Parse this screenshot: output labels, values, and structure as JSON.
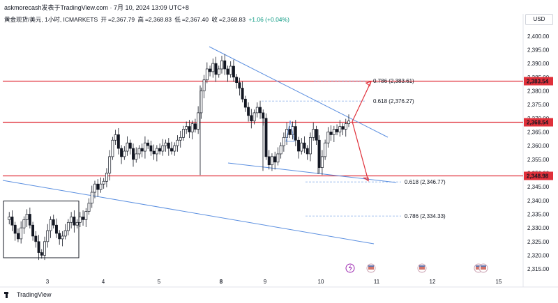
{
  "header": {
    "author": "askmorecash发表于TradingView.com · 7月 10, 2024 13:09 UTC+8",
    "symbol": "黄金现货/美元, 1小时, ICMARKETS",
    "open_label": "开",
    "open": "=2,367.79",
    "high_label": "高",
    "high": "=2,368.83",
    "low_label": "低",
    "low": "=2,367.40",
    "close_label": "收",
    "close": "=2,368.83",
    "change": "+1.06 (+0.04%)"
  },
  "currency": "USD",
  "brand": "TradingView",
  "colors": {
    "up": "#089981",
    "down": "#131722",
    "level": "#e0303a",
    "trend": "#5b8fe0",
    "fib": "#5b8fe0",
    "arrow": "#e0303a"
  },
  "chart_data": {
    "type": "candlestick",
    "x_labels": [
      "3",
      "4",
      "5",
      "8",
      "9",
      "10",
      "11",
      "12",
      "15"
    ],
    "bold_x_labels": [
      "8"
    ],
    "y_ticks": [
      2315,
      2320,
      2325,
      2330,
      2335,
      2340,
      2345,
      2350,
      2355,
      2360,
      2365,
      2370,
      2375,
      2380,
      2385,
      2390,
      2395,
      2400
    ],
    "ylim": [
      2312.5,
      2403.5
    ],
    "horizontal_levels": [
      {
        "label": "2,383.54",
        "value": 2383.54
      },
      {
        "label": "2,368.54",
        "value": 2368.54
      },
      {
        "label": "2,348.98",
        "value": 2348.98
      }
    ],
    "fib_levels": [
      {
        "label": "0.786 (2,383.61)",
        "value": 2383.61
      },
      {
        "label": "0.618 (2,376.27)",
        "value": 2376.27
      },
      {
        "label": "0.618 (2,346.77)",
        "value": 2346.77
      },
      {
        "label": "0.786 (2,334.33)",
        "value": 2334.33
      }
    ],
    "price_path": [
      2333,
      2334,
      2331,
      2328,
      2326,
      2330,
      2333,
      2335,
      2331,
      2327,
      2325,
      2321,
      2320,
      2325,
      2329,
      2333,
      2331,
      2328,
      2326,
      2327,
      2329,
      2332,
      2334,
      2331,
      2332,
      2334,
      2333,
      2336,
      2339,
      2343,
      2346,
      2344,
      2346,
      2347,
      2350,
      2356,
      2362,
      2364,
      2359,
      2356,
      2358,
      2361,
      2359,
      2355,
      2357,
      2359,
      2358,
      2361,
      2360,
      2358,
      2357,
      2359,
      2358,
      2360,
      2361,
      2359,
      2358,
      2360,
      2362,
      2363,
      2366,
      2367,
      2365,
      2368,
      2366,
      2372,
      2380,
      2384,
      2388,
      2387,
      2390,
      2386,
      2388,
      2391,
      2388,
      2386,
      2389,
      2385,
      2383,
      2381,
      2377,
      2374,
      2371,
      2369,
      2372,
      2374,
      2372,
      2370,
      2356,
      2353,
      2356,
      2354,
      2357,
      2360,
      2363,
      2366,
      2364,
      2367,
      2362,
      2358,
      2361,
      2359,
      2357,
      2363,
      2366,
      2362,
      2352,
      2356,
      2361,
      2365,
      2364,
      2366,
      2365,
      2367,
      2366,
      2368,
      2369
    ]
  }
}
